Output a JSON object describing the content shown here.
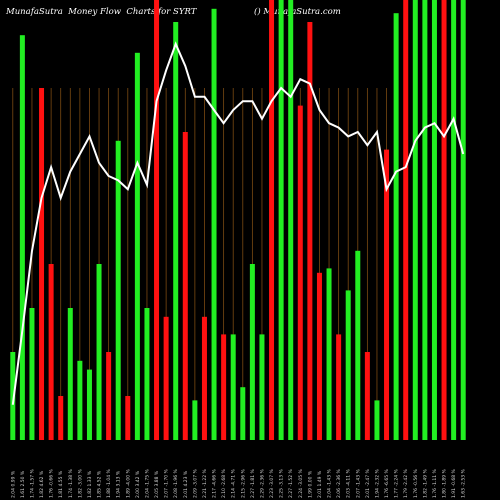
{
  "title_left": "MunafaSutra  Money Flow  Charts for SYRT",
  "title_right": "() MunafaSutra.com",
  "chart_data": {
    "type": "bar",
    "colors": {
      "up": "#22ee22",
      "down": "#ff1111",
      "line": "#ffffff",
      "grid": "#7a4a12",
      "background": "#000000"
    },
    "ylim": [
      0,
      100
    ],
    "categories": [
      "2.04 0.99 %",
      "1.61 2.50 %",
      "1.74 -1.57 %",
      "1.82 4.62 %",
      "1.76 -0.66 %",
      "1.81 4.55 %",
      "1.74 -1.38 %",
      "1.82 -3.00 %",
      "1.82 1.33 %",
      "1.85 4.52 %",
      "1.88 -1.04 %",
      "1.94 3.13 %",
      "1.89 -4.00 %",
      "2.00 3.42 %",
      "2.04 -1.75 %",
      "2.05 3.88 %",
      "2.07 -1.70 %",
      "2.08 -1.96 %",
      "2.01 4.23 %",
      "2.09 -3.07 %",
      "2.21 -1.22 %",
      "2.17 -4.66 %",
      "2.10 -2.68 %",
      "2.14 -4.71 %",
      "2.15 -2.96 %",
      "2.27 -1.81 %",
      "2.29 -2.36 %",
      "2.23 -3.07 %",
      "2.25 -3.13 %",
      "2.27 -1.52 %",
      "2.24 -3.05 %",
      "1.99 0.00 %",
      "2.01 1.49 %",
      "2.04 -1.43 %",
      "2.06 -2.36 %",
      "2.03 -4.11 %",
      "2.07 -1.43 %",
      "2.01 -2.47 %",
      "1.94 -2.32 %",
      "1.76 -6.65 %",
      "1.77 -2.24 %",
      "1.79 -2.42 %",
      "1.76 -0.56 %",
      "1.82 -1.49 %",
      "1.76 -1.11 %",
      "1.80 -1.89 %",
      "1.91 -0.68 %",
      "1.63 -2.53 %"
    ],
    "series": [
      {
        "values": [
          20,
          92,
          30,
          80,
          40,
          10,
          30,
          18,
          16,
          40,
          20,
          68,
          10,
          88,
          30,
          100,
          28,
          95,
          70,
          9,
          28,
          98,
          24,
          24,
          12,
          40,
          24,
          100,
          100,
          100,
          76,
          95,
          38,
          39,
          24,
          34,
          43,
          20,
          9,
          66,
          97,
          100,
          100,
          100,
          100,
          100,
          100,
          100
        ],
        "direction": [
          "up",
          "up",
          "up",
          "down",
          "down",
          "down",
          "up",
          "up",
          "up",
          "up",
          "down",
          "up",
          "down",
          "up",
          "up",
          "down",
          "down",
          "up",
          "down",
          "up",
          "down",
          "up",
          "down",
          "up",
          "up",
          "up",
          "up",
          "down",
          "up",
          "up",
          "down",
          "down",
          "down",
          "up",
          "down",
          "up",
          "up",
          "down",
          "up",
          "down",
          "up",
          "down",
          "up",
          "up",
          "up",
          "down",
          "up",
          "up"
        ]
      },
      {
        "values": [
          8,
          25,
          43,
          55,
          62,
          55,
          61,
          65,
          69,
          63,
          60,
          59,
          57,
          63,
          58,
          77,
          84,
          90,
          85,
          78,
          78,
          75,
          72,
          75,
          77,
          77,
          73,
          77,
          80,
          78,
          82,
          81,
          75,
          72,
          71,
          69,
          70,
          67,
          70,
          57,
          61,
          62,
          68,
          71,
          72,
          69,
          73,
          65
        ]
      }
    ]
  }
}
